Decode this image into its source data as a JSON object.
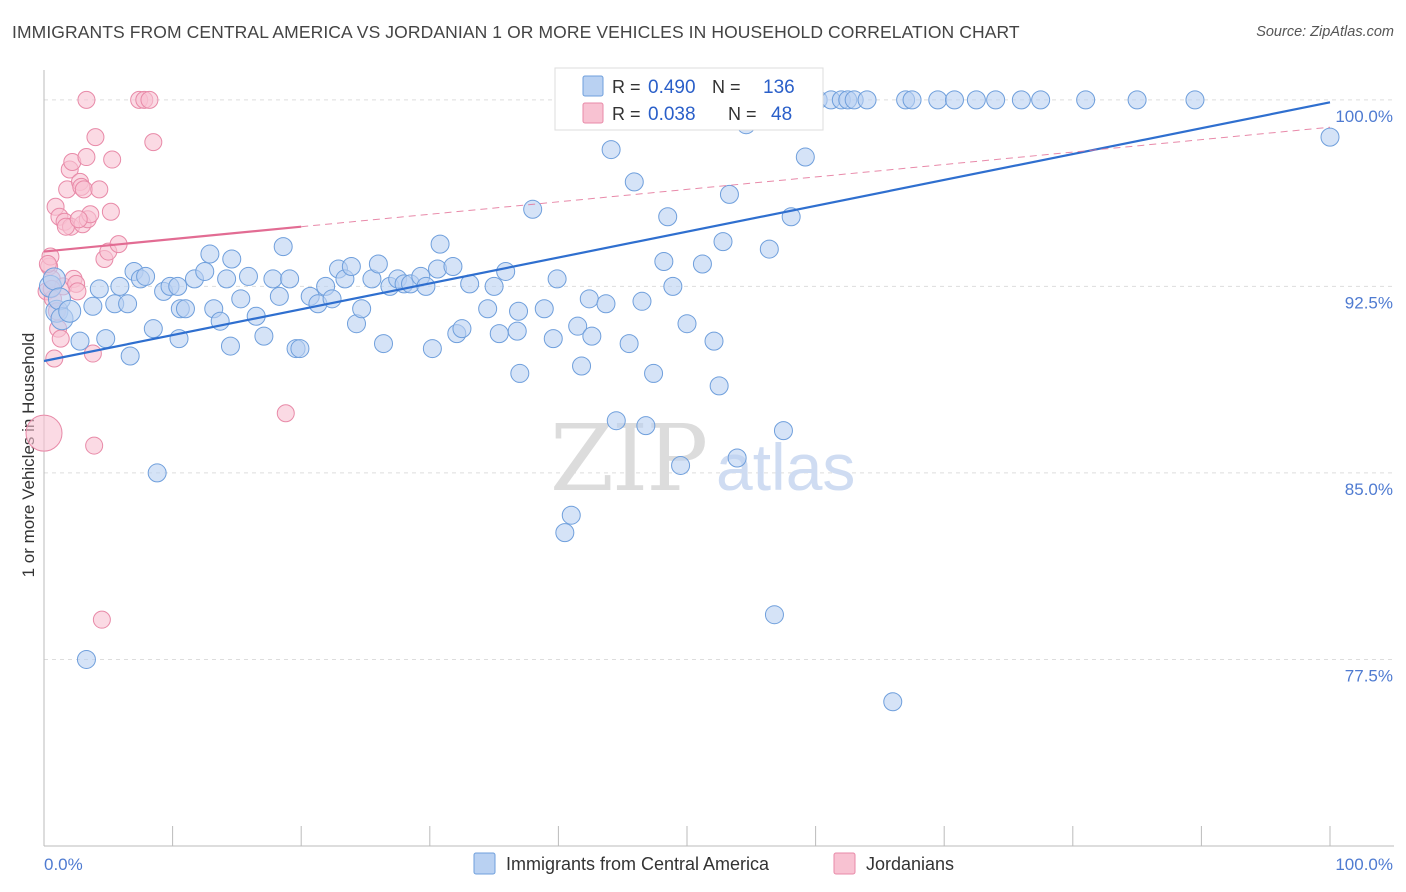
{
  "title": "IMMIGRANTS FROM CENTRAL AMERICA VS JORDANIAN 1 OR MORE VEHICLES IN HOUSEHOLD CORRELATION CHART",
  "source": "Source: ZipAtlas.com",
  "watermark": {
    "part1": "ZIP",
    "part2": "atlas"
  },
  "colors": {
    "blue_fill": "#b9d1f2",
    "blue_stroke": "#6f9fdc",
    "blue_line": "#2f6fcf",
    "pink_fill": "#f8c2d2",
    "pink_stroke": "#e88aa8",
    "pink_line": "#e26c93",
    "tick_text": "#4f7bd1",
    "grid": "#dddddd"
  },
  "legend": {
    "rows": [
      {
        "r_label": "R =",
        "r_value": "0.490",
        "n_label": "N =",
        "n_value": "136"
      },
      {
        "r_label": "R =",
        "r_value": "0.038",
        "n_label": "N =",
        "n_value": "48"
      }
    ]
  },
  "chart_data": {
    "type": "scatter",
    "title": "IMMIGRANTS FROM CENTRAL AMERICA VS JORDANIAN 1 OR MORE VEHICLES IN HOUSEHOLD CORRELATION CHART",
    "xlabel": "",
    "ylabel": "1 or more Vehicles in Household",
    "xlim": [
      0,
      100
    ],
    "ylim": [
      70,
      101.2
    ],
    "x_tick_labels": [
      "0.0%",
      "100.0%"
    ],
    "y_ticks": [
      {
        "value": 100,
        "label": "100.0%"
      },
      {
        "value": 92.5,
        "label": "92.5%"
      },
      {
        "value": 85,
        "label": "85.0%"
      },
      {
        "value": 77.5,
        "label": "77.5%"
      }
    ],
    "grid": true,
    "series": [
      {
        "name": "Immigrants from Central America",
        "R": 0.49,
        "N": 136,
        "trend": {
          "x0": 0,
          "y0": 89.5,
          "x1": 100,
          "y1": 99.9
        },
        "points": [
          [
            0.5,
            92.5
          ],
          [
            0.8,
            92.8
          ],
          [
            1.0,
            91.5
          ],
          [
            1.2,
            92.0
          ],
          [
            1.4,
            91.2
          ],
          [
            2.0,
            91.5
          ],
          [
            2.8,
            90.3
          ],
          [
            3.3,
            77.5
          ],
          [
            3.8,
            91.7
          ],
          [
            4.3,
            92.4
          ],
          [
            4.8,
            90.4
          ],
          [
            5.5,
            91.8
          ],
          [
            5.9,
            92.5
          ],
          [
            6.5,
            91.8
          ],
          [
            6.7,
            89.7
          ],
          [
            7.0,
            93.1
          ],
          [
            7.5,
            92.8
          ],
          [
            7.9,
            92.9
          ],
          [
            8.5,
            90.8
          ],
          [
            8.8,
            85.0
          ],
          [
            9.3,
            92.3
          ],
          [
            9.8,
            92.5
          ],
          [
            10.4,
            92.5
          ],
          [
            10.5,
            90.4
          ],
          [
            10.6,
            91.6
          ],
          [
            11.0,
            91.6
          ],
          [
            11.7,
            92.8
          ],
          [
            12.5,
            93.1
          ],
          [
            12.9,
            93.8
          ],
          [
            13.2,
            91.6
          ],
          [
            13.7,
            91.1
          ],
          [
            14.2,
            92.8
          ],
          [
            14.5,
            90.1
          ],
          [
            14.6,
            93.6
          ],
          [
            15.3,
            92.0
          ],
          [
            15.9,
            92.9
          ],
          [
            16.5,
            91.3
          ],
          [
            17.1,
            90.5
          ],
          [
            17.8,
            92.8
          ],
          [
            18.3,
            92.1
          ],
          [
            18.6,
            94.1
          ],
          [
            19.1,
            92.8
          ],
          [
            19.6,
            90.0
          ],
          [
            19.9,
            90.0
          ],
          [
            20.7,
            92.1
          ],
          [
            21.3,
            91.8
          ],
          [
            21.9,
            92.5
          ],
          [
            22.4,
            92.0
          ],
          [
            22.9,
            93.2
          ],
          [
            23.4,
            92.8
          ],
          [
            23.9,
            93.3
          ],
          [
            24.3,
            91.0
          ],
          [
            24.7,
            91.6
          ],
          [
            25.5,
            92.8
          ],
          [
            26.0,
            93.4
          ],
          [
            26.4,
            90.2
          ],
          [
            26.9,
            92.5
          ],
          [
            27.5,
            92.8
          ],
          [
            28.0,
            92.6
          ],
          [
            28.5,
            92.6
          ],
          [
            29.3,
            92.9
          ],
          [
            29.7,
            92.5
          ],
          [
            30.2,
            90.0
          ],
          [
            30.6,
            93.2
          ],
          [
            30.8,
            94.2
          ],
          [
            31.8,
            93.3
          ],
          [
            32.1,
            90.6
          ],
          [
            32.5,
            90.8
          ],
          [
            33.1,
            92.6
          ],
          [
            34.5,
            91.6
          ],
          [
            35.0,
            92.5
          ],
          [
            35.4,
            90.6
          ],
          [
            35.9,
            93.1
          ],
          [
            36.8,
            90.7
          ],
          [
            37.0,
            89.0
          ],
          [
            36.9,
            91.5
          ],
          [
            38.0,
            95.6
          ],
          [
            38.9,
            91.6
          ],
          [
            39.6,
            90.4
          ],
          [
            39.9,
            92.8
          ],
          [
            40.5,
            82.6
          ],
          [
            41.0,
            83.3
          ],
          [
            41.5,
            90.9
          ],
          [
            41.8,
            89.3
          ],
          [
            42.4,
            92.0
          ],
          [
            42.6,
            90.5
          ],
          [
            43.7,
            91.8
          ],
          [
            44.1,
            98.0
          ],
          [
            44.5,
            87.1
          ],
          [
            45.5,
            90.2
          ],
          [
            45.9,
            96.7
          ],
          [
            46.5,
            91.9
          ],
          [
            46.8,
            86.9
          ],
          [
            47.4,
            89.0
          ],
          [
            48.2,
            93.5
          ],
          [
            48.5,
            95.3
          ],
          [
            48.9,
            92.5
          ],
          [
            49.5,
            85.3
          ],
          [
            50.0,
            91.0
          ],
          [
            50.5,
            100.0
          ],
          [
            51.0,
            100.0
          ],
          [
            51.2,
            93.4
          ],
          [
            52.1,
            90.3
          ],
          [
            52.5,
            88.5
          ],
          [
            52.8,
            94.3
          ],
          [
            53.3,
            96.2
          ],
          [
            53.9,
            85.6
          ],
          [
            54.6,
            99.0
          ],
          [
            55.0,
            100.0
          ],
          [
            55.5,
            100.0
          ],
          [
            56.0,
            100.0
          ],
          [
            56.4,
            94.0
          ],
          [
            56.8,
            79.3
          ],
          [
            57.5,
            86.7
          ],
          [
            58.1,
            95.3
          ],
          [
            58.5,
            100.0
          ],
          [
            59.2,
            97.7
          ],
          [
            60.2,
            100.0
          ],
          [
            61.2,
            100.0
          ],
          [
            62.0,
            100.0
          ],
          [
            62.5,
            100.0
          ],
          [
            63.0,
            100.0
          ],
          [
            64.0,
            100.0
          ],
          [
            66.0,
            75.8
          ],
          [
            67.0,
            100.0
          ],
          [
            67.5,
            100.0
          ],
          [
            69.5,
            100.0
          ],
          [
            70.8,
            100.0
          ],
          [
            72.5,
            100.0
          ],
          [
            74.0,
            100.0
          ],
          [
            76.0,
            100.0
          ],
          [
            77.5,
            100.0
          ],
          [
            81.0,
            100.0
          ],
          [
            85.0,
            100.0
          ],
          [
            89.5,
            100.0
          ],
          [
            100.0,
            98.5
          ]
        ]
      },
      {
        "name": "Jordanians",
        "R": 0.038,
        "N": 48,
        "trend": {
          "x0": 0,
          "y0": 93.9,
          "x1": 20,
          "y1": 94.9
        },
        "trend_ext": {
          "x0": 20,
          "y0": 94.9,
          "x1": 100,
          "y1": 98.9
        },
        "points": [
          [
            0.0,
            86.6
          ],
          [
            0.2,
            92.3
          ],
          [
            0.4,
            93.3
          ],
          [
            0.5,
            93.7
          ],
          [
            0.6,
            92.8
          ],
          [
            0.7,
            92.0
          ],
          [
            0.8,
            89.6
          ],
          [
            0.9,
            95.7
          ],
          [
            1.0,
            91.5
          ],
          [
            1.1,
            90.8
          ],
          [
            1.2,
            95.3
          ],
          [
            1.3,
            90.4
          ],
          [
            1.5,
            92.5
          ],
          [
            1.6,
            95.1
          ],
          [
            1.8,
            96.4
          ],
          [
            2.0,
            97.2
          ],
          [
            2.1,
            94.9
          ],
          [
            2.2,
            97.5
          ],
          [
            2.3,
            92.8
          ],
          [
            2.5,
            92.6
          ],
          [
            2.6,
            92.3
          ],
          [
            2.8,
            96.7
          ],
          [
            2.9,
            96.5
          ],
          [
            3.0,
            95.0
          ],
          [
            3.1,
            96.4
          ],
          [
            3.3,
            97.7
          ],
          [
            3.4,
            95.2
          ],
          [
            3.6,
            95.4
          ],
          [
            3.8,
            89.8
          ],
          [
            3.9,
            86.1
          ],
          [
            4.0,
            98.5
          ],
          [
            4.3,
            96.4
          ],
          [
            4.5,
            79.1
          ],
          [
            4.7,
            93.6
          ],
          [
            5.0,
            93.9
          ],
          [
            5.2,
            95.5
          ],
          [
            5.3,
            97.6
          ],
          [
            5.8,
            94.2
          ],
          [
            7.4,
            100.0
          ],
          [
            7.8,
            100.0
          ],
          [
            8.2,
            100.0
          ],
          [
            8.5,
            98.3
          ],
          [
            18.8,
            87.4
          ],
          [
            3.3,
            100.0
          ],
          [
            0.3,
            93.4
          ],
          [
            1.7,
            94.9
          ],
          [
            2.7,
            95.2
          ],
          [
            0.6,
            92.4
          ]
        ]
      }
    ]
  },
  "bottom_legend": [
    {
      "label": "Immigrants from Central America"
    },
    {
      "label": "Jordanians"
    }
  ]
}
